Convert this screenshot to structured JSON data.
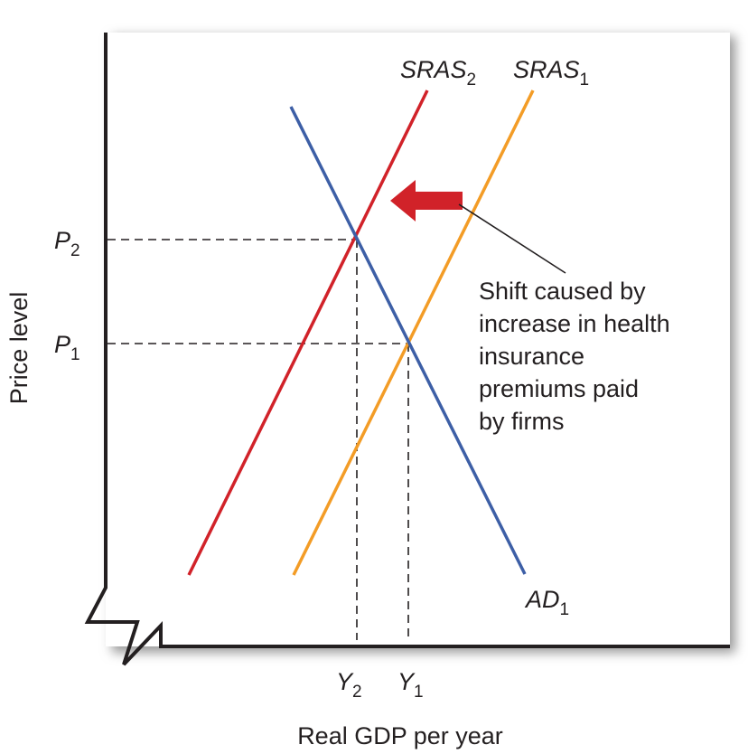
{
  "axes": {
    "y_label": "Price level",
    "x_label": "Real GDP per year"
  },
  "curves": [
    {
      "label": "SRAS",
      "subscript": "2"
    },
    {
      "label": "SRAS",
      "subscript": "1"
    },
    {
      "label": "AD",
      "subscript": "1"
    }
  ],
  "price_levels": [
    {
      "label": "P",
      "subscript": "2"
    },
    {
      "label": "P",
      "subscript": "1"
    }
  ],
  "output_levels": [
    {
      "label": "Y",
      "subscript": "2"
    },
    {
      "label": "Y",
      "subscript": "1"
    }
  ],
  "annotation": {
    "lines": [
      "Shift caused by",
      "increase in health",
      "insurance",
      "premiums paid",
      "by firms"
    ]
  }
}
